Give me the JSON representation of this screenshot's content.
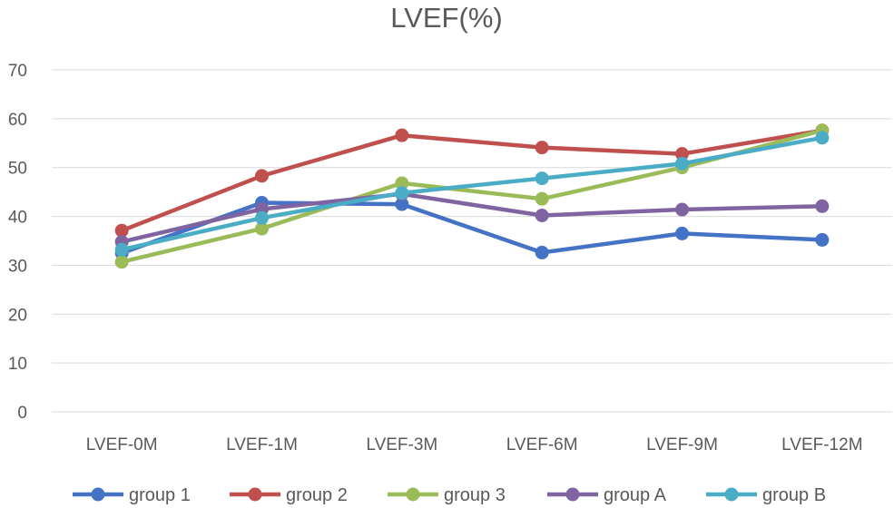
{
  "chart_data": {
    "type": "line",
    "title": "LVEF(%)",
    "xlabel": "",
    "ylabel": "",
    "categories": [
      "LVEF-0M",
      "LVEF-1M",
      "LVEF-3M",
      "LVEF-6M",
      "LVEF-9M",
      "LVEF-12M"
    ],
    "ylim": [
      0,
      70
    ],
    "yticks": [
      0,
      10,
      20,
      30,
      40,
      50,
      60,
      70
    ],
    "grid": true,
    "legend_position": "bottom",
    "series": [
      {
        "name": "group 1",
        "color": "#4472c4",
        "values": [
          32.5,
          42.8,
          42.5,
          32.6,
          36.5,
          35.2
        ]
      },
      {
        "name": "group 2",
        "color": "#c0504d",
        "values": [
          37.1,
          48.3,
          56.6,
          54.1,
          52.8,
          57.6
        ]
      },
      {
        "name": "group 3",
        "color": "#9bbb59",
        "values": [
          30.7,
          37.5,
          46.8,
          43.6,
          50.0,
          57.6
        ]
      },
      {
        "name": "group A",
        "color": "#8064a2",
        "values": [
          34.8,
          41.5,
          44.6,
          40.2,
          41.4,
          42.1
        ]
      },
      {
        "name": "group B",
        "color": "#4bacc6",
        "values": [
          33.2,
          39.7,
          44.8,
          47.8,
          50.8,
          56.1
        ]
      }
    ]
  }
}
